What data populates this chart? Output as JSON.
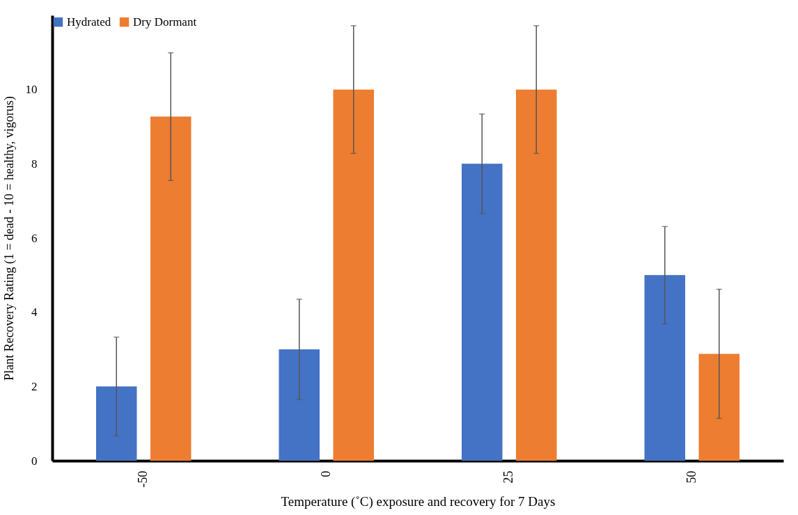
{
  "chart_data": {
    "type": "bar",
    "xlabel": "Temperature (˚C) exposure and recovery for 7 Days",
    "ylabel": "Plant Recovery Rating (1 = dead - 10 = healthy, vigorus)",
    "categories": [
      "-50",
      "0",
      "25",
      "50"
    ],
    "series": [
      {
        "name": "Hydrated",
        "color": "#4472c4",
        "values": [
          2.0,
          3.0,
          8.0,
          5.0
        ],
        "errors": [
          1.33,
          1.35,
          1.34,
          1.31
        ]
      },
      {
        "name": "Dry Dormant",
        "color": "#ed7d31",
        "values": [
          9.27,
          10.0,
          10.0,
          2.88
        ],
        "errors": [
          1.72,
          1.72,
          1.72,
          1.74
        ]
      }
    ],
    "ylim": [
      0,
      12
    ],
    "yticks": [
      0,
      2,
      4,
      6,
      8,
      10
    ],
    "grid": false,
    "legend": "top"
  }
}
